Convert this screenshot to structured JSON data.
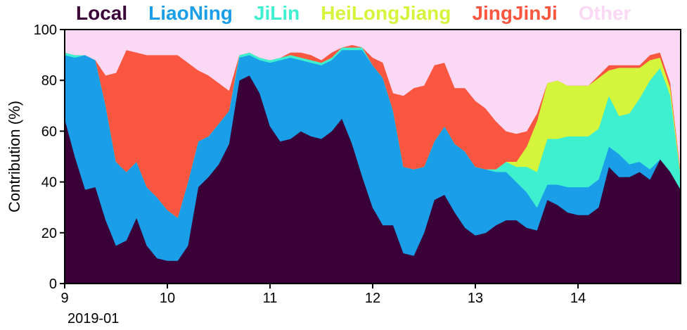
{
  "chart_data": {
    "type": "area",
    "stacked": true,
    "ylabel": "Contribution (%)",
    "xlabel_sub": "2019-01",
    "ylim": [
      0,
      100
    ],
    "yticks": [
      "0",
      "20",
      "40",
      "60",
      "80",
      "100"
    ],
    "xlim": [
      9,
      15
    ],
    "xticks": [
      {
        "x": 9,
        "label": "9"
      },
      {
        "x": 10,
        "label": "10"
      },
      {
        "x": 11,
        "label": "11"
      },
      {
        "x": 12,
        "label": "12"
      },
      {
        "x": 13,
        "label": "13"
      },
      {
        "x": 14,
        "label": "14"
      }
    ],
    "x": [
      9.0,
      9.1,
      9.2,
      9.3,
      9.4,
      9.5,
      9.6,
      9.7,
      9.8,
      9.9,
      10.0,
      10.1,
      10.2,
      10.3,
      10.4,
      10.5,
      10.6,
      10.7,
      10.8,
      10.9,
      11.0,
      11.1,
      11.2,
      11.3,
      11.4,
      11.5,
      11.6,
      11.7,
      11.8,
      11.9,
      12.0,
      12.1,
      12.2,
      12.3,
      12.4,
      12.5,
      12.6,
      12.7,
      12.8,
      12.9,
      13.0,
      13.1,
      13.2,
      13.3,
      13.4,
      13.5,
      13.6,
      13.7,
      13.8,
      13.9,
      14.0,
      14.1,
      14.2,
      14.3,
      14.4,
      14.5,
      14.6,
      14.7,
      14.8,
      14.9,
      15.0
    ],
    "series": [
      {
        "name": "Local",
        "color": "#3a0038",
        "values": [
          65,
          50,
          37,
          38,
          25,
          15,
          17,
          26,
          15,
          10,
          9,
          9,
          15,
          38,
          42,
          47,
          55,
          80,
          82,
          75,
          62,
          56,
          57,
          60,
          58,
          57,
          60,
          65,
          55,
          42,
          30,
          23,
          23,
          12,
          11,
          20,
          33,
          35,
          28,
          22,
          19,
          20,
          23,
          25,
          25,
          22,
          21,
          33,
          31,
          28,
          27,
          27,
          30,
          46,
          42,
          42,
          44,
          41,
          49,
          44,
          37
        ]
      },
      {
        "name": "LiaoNing",
        "color": "#1a9ee8",
        "values": [
          25,
          39,
          53,
          50,
          45,
          33,
          27,
          22,
          23,
          24,
          20,
          17,
          25,
          18,
          16,
          16,
          13,
          9,
          8,
          13,
          25,
          32,
          32,
          28,
          29,
          29,
          28,
          27,
          37,
          50,
          56,
          58,
          45,
          34,
          34,
          26,
          23,
          27,
          27,
          30,
          27,
          25,
          21,
          19,
          15,
          14,
          9,
          6,
          8,
          10,
          11,
          11,
          11,
          8,
          9,
          5,
          4,
          4,
          0,
          0,
          0
        ]
      },
      {
        "name": "JiLin",
        "color": "#3ef0d0",
        "values": [
          1,
          1,
          0,
          0,
          0,
          0,
          0,
          0,
          0,
          0,
          0,
          0,
          0,
          0,
          0,
          0,
          0,
          1,
          1,
          1,
          1,
          1,
          1,
          1,
          1,
          1,
          1,
          1,
          1,
          1,
          0,
          0,
          0,
          0,
          0,
          0,
          0,
          0,
          0,
          0,
          0,
          0,
          1,
          4,
          6,
          10,
          14,
          18,
          18,
          20,
          20,
          20,
          20,
          20,
          15,
          20,
          25,
          35,
          36,
          30,
          5
        ]
      },
      {
        "name": "HeiLongJiang",
        "color": "#d4f53c",
        "values": [
          0,
          0,
          0,
          0,
          0,
          0,
          0,
          0,
          0,
          0,
          0,
          0,
          0,
          0,
          0,
          0,
          0,
          0,
          0,
          0,
          0,
          0,
          0,
          0,
          0,
          0,
          0,
          0,
          0,
          0,
          0,
          0,
          0,
          0,
          0,
          0,
          0,
          0,
          0,
          0,
          0,
          0,
          0,
          0,
          2,
          8,
          20,
          22,
          23,
          20,
          20,
          20,
          20,
          10,
          19,
          18,
          12,
          8,
          4,
          3,
          1
        ]
      },
      {
        "name": "JingJinJi",
        "color": "#fa5640",
        "values": [
          0,
          0,
          0,
          0,
          12,
          35,
          48,
          43,
          52,
          56,
          61,
          64,
          47,
          28,
          24,
          16,
          8,
          0,
          0,
          0,
          0,
          0,
          1,
          2,
          2,
          1,
          2,
          0,
          1,
          0,
          3,
          6,
          7,
          28,
          32,
          32,
          30,
          25,
          22,
          25,
          26,
          24,
          19,
          12,
          11,
          6,
          3,
          0,
          0,
          0,
          0,
          0,
          1,
          2,
          1,
          1,
          1,
          2,
          2,
          2,
          1
        ]
      },
      {
        "name": "Other",
        "color": "#fbd9f5",
        "values": [
          9,
          10,
          10,
          12,
          18,
          17,
          8,
          9,
          10,
          10,
          10,
          10,
          13,
          16,
          18,
          21,
          24,
          10,
          9,
          11,
          12,
          11,
          9,
          9,
          10,
          12,
          9,
          7,
          6,
          7,
          11,
          13,
          25,
          26,
          23,
          22,
          14,
          13,
          23,
          23,
          28,
          31,
          36,
          40,
          41,
          40,
          33,
          21,
          20,
          22,
          22,
          22,
          18,
          14,
          14,
          14,
          14,
          10,
          9,
          21,
          56
        ]
      }
    ]
  }
}
